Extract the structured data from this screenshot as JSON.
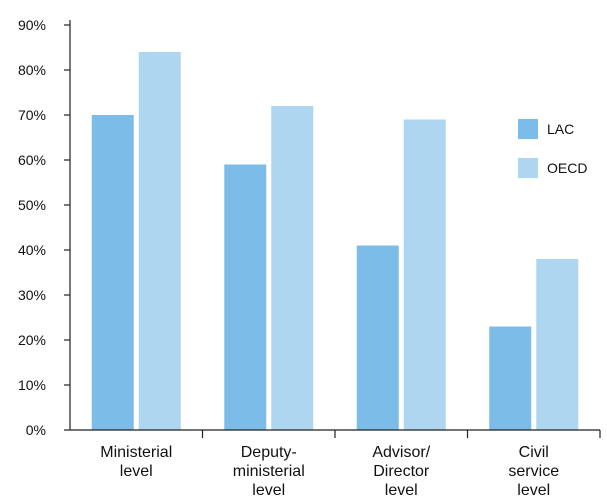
{
  "chart_data": {
    "type": "bar",
    "categories": [
      [
        "Ministerial",
        "level"
      ],
      [
        "Deputy-",
        "ministerial",
        "level"
      ],
      [
        "Advisor/",
        "Director",
        "level"
      ],
      [
        "Civil",
        "service",
        "level"
      ]
    ],
    "series": [
      {
        "name": "LAC",
        "values": [
          70,
          59,
          41,
          23
        ],
        "color": "#7bbde8"
      },
      {
        "name": "OECD",
        "values": [
          84,
          72,
          69,
          38
        ],
        "color": "#aed6f1"
      }
    ],
    "y_ticks": [
      "0%",
      "10%",
      "20%",
      "30%",
      "40%",
      "50%",
      "60%",
      "70%",
      "80%",
      "90%"
    ],
    "ylim": [
      0,
      90
    ],
    "grid": false,
    "legend_position": "right"
  }
}
